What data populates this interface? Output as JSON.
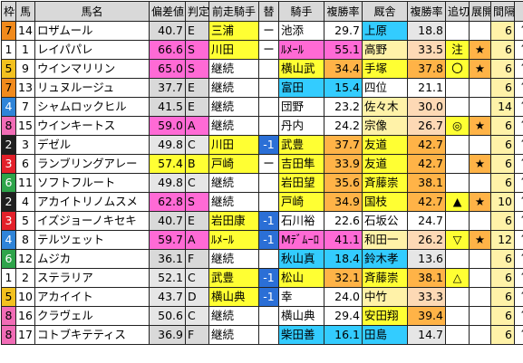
{
  "headers": [
    "枠",
    "馬",
    "馬名",
    "偏差値",
    "判定",
    "前走騎手",
    "替",
    "騎手",
    "複勝率",
    "厩舎",
    "複勝率",
    "追切",
    "展開",
    "間隔",
    ""
  ],
  "rows": [
    {
      "waku": "7",
      "num": "14",
      "name": "ロザムール",
      "hensa": "40.7",
      "grade": "E",
      "prev": "三浦",
      "change": "ー",
      "jockey": "池添",
      "jrate": "29.7",
      "stable": "上原",
      "srate": "18.8",
      "oikiri": "",
      "tenkai": "",
      "interval": "6",
      "level": "up"
    },
    {
      "waku": "1",
      "num": "1",
      "name": "レイパパレ",
      "hensa": "66.6",
      "grade": "S",
      "prev": "川田",
      "change": "ー",
      "jockey": "ﾙﾒｰﾙ",
      "jrate": "55.1",
      "stable": "高野",
      "srate": "33.5",
      "oikiri": "注",
      "tenkai": "★",
      "interval": "6",
      "level": "up"
    },
    {
      "waku": "5",
      "num": "9",
      "name": "ウインマリリン",
      "hensa": "65.0",
      "grade": "S",
      "prev": "継続",
      "change": "",
      "jockey": "横山武",
      "jrate": "34.4",
      "stable": "手塚",
      "srate": "37.8",
      "oikiri": "〇",
      "tenkai": "★",
      "interval": "6",
      "level": "up"
    },
    {
      "waku": "7",
      "num": "13",
      "name": "リュヌルージュ",
      "hensa": "37.7",
      "grade": "E",
      "prev": "継続",
      "change": "",
      "jockey": "富田",
      "jrate": "15.4",
      "stable": "四位",
      "srate": "21.1",
      "oikiri": "",
      "tenkai": "",
      "interval": "6",
      "level": "up"
    },
    {
      "waku": "4",
      "num": "7",
      "name": "シャムロックヒル",
      "hensa": "41.5",
      "grade": "E",
      "prev": "継続",
      "change": "",
      "jockey": "団野",
      "jrate": "23.2",
      "stable": "佐々木",
      "srate": "30.0",
      "oikiri": "",
      "tenkai": "",
      "interval": "14",
      "level": "up"
    },
    {
      "waku": "8",
      "num": "15",
      "name": "ウインキートス",
      "hensa": "59.0",
      "grade": "A",
      "prev": "継続",
      "change": "",
      "jockey": "丹内",
      "jrate": "24.2",
      "stable": "宗像",
      "srate": "26.7",
      "oikiri": "◎",
      "tenkai": "★",
      "interval": "6",
      "level": "up"
    },
    {
      "waku": "2",
      "num": "3",
      "name": "デゼル",
      "hensa": "49.8",
      "grade": "C",
      "prev": "川田",
      "change": "-1",
      "jockey": "武豊",
      "jrate": "37.7",
      "stable": "友道",
      "srate": "42.7",
      "oikiri": "",
      "tenkai": "",
      "interval": "6",
      "level": "up"
    },
    {
      "waku": "3",
      "num": "6",
      "name": "ランブリングアレー",
      "hensa": "57.4",
      "grade": "B",
      "prev": "戸崎",
      "change": "ー",
      "jockey": "吉田隼",
      "jrate": "33.9",
      "stable": "友道",
      "srate": "42.7",
      "oikiri": "",
      "tenkai": "★",
      "interval": "6",
      "level": "up"
    },
    {
      "waku": "6",
      "num": "11",
      "name": "ソフトフルート",
      "hensa": "49.8",
      "grade": "C",
      "prev": "継続",
      "change": "",
      "jockey": "岩田望",
      "jrate": "35.6",
      "stable": "斉藤崇",
      "srate": "38.1",
      "oikiri": "",
      "tenkai": "",
      "interval": "6",
      "level": "up"
    },
    {
      "waku": "2",
      "num": "4",
      "name": "アカイトリノムスメ",
      "hensa": "62.8",
      "grade": "S",
      "prev": "継続",
      "change": "",
      "jockey": "戸崎",
      "jrate": "34.9",
      "stable": "国枝",
      "srate": "42.7",
      "oikiri": "▲",
      "tenkai": "★",
      "interval": "10",
      "level": "up"
    },
    {
      "waku": "3",
      "num": "5",
      "name": "イズジョーノキセキ",
      "hensa": "40.7",
      "grade": "E",
      "prev": "岩田康",
      "change": "-1",
      "jockey": "石川裕",
      "jrate": "22.6",
      "stable": "石坂公",
      "srate": "24.7",
      "oikiri": "",
      "tenkai": "",
      "interval": "6",
      "level": "up"
    },
    {
      "waku": "4",
      "num": "8",
      "name": "テルツェット",
      "hensa": "59.7",
      "grade": "A",
      "prev": "ﾙﾒｰﾙ",
      "change": "-1",
      "jockey": "Mﾃﾞﾑｰﾛ",
      "jrate": "41.1",
      "stable": "和田一",
      "srate": "26.2",
      "oikiri": "▽",
      "tenkai": "★",
      "interval": "12",
      "level": "up"
    },
    {
      "waku": "6",
      "num": "12",
      "name": "ムジカ",
      "hensa": "36.1",
      "grade": "F",
      "prev": "継続",
      "change": "",
      "jockey": "秋山真",
      "jrate": "18.4",
      "stable": "鈴木孝",
      "srate": "13.6",
      "oikiri": "",
      "tenkai": "",
      "interval": "6",
      "level": "up"
    },
    {
      "waku": "1",
      "num": "2",
      "name": "ステラリア",
      "hensa": "52.1",
      "grade": "C",
      "prev": "武豊",
      "change": "-1",
      "jockey": "松山",
      "jrate": "32.1",
      "stable": "斉藤崇",
      "srate": "38.1",
      "oikiri": "△",
      "tenkai": "",
      "interval": "6",
      "level": "up"
    },
    {
      "waku": "5",
      "num": "10",
      "name": "アカイイト",
      "hensa": "43.7",
      "grade": "D",
      "prev": "横山典",
      "change": "-1",
      "jockey": "幸",
      "jrate": "24.0",
      "stable": "中竹",
      "srate": "33.3",
      "oikiri": "",
      "tenkai": "",
      "interval": "6",
      "level": "up"
    },
    {
      "waku": "8",
      "num": "16",
      "name": "クラヴェル",
      "hensa": "50.6",
      "grade": "C",
      "prev": "継続",
      "change": "",
      "jockey": "横山典",
      "jrate": "29.4",
      "stable": "安田翔",
      "srate": "39.4",
      "oikiri": "",
      "tenkai": "",
      "interval": "6",
      "level": "up"
    },
    {
      "waku": "8",
      "num": "17",
      "name": "コトブキテティス",
      "hensa": "36.9",
      "grade": "F",
      "prev": "継続",
      "change": "",
      "jockey": "柴田善",
      "jrate": "16.1",
      "stable": "田島",
      "srate": "14.7",
      "oikiri": "",
      "tenkai": "",
      "interval": "6",
      "level": "up"
    }
  ]
}
